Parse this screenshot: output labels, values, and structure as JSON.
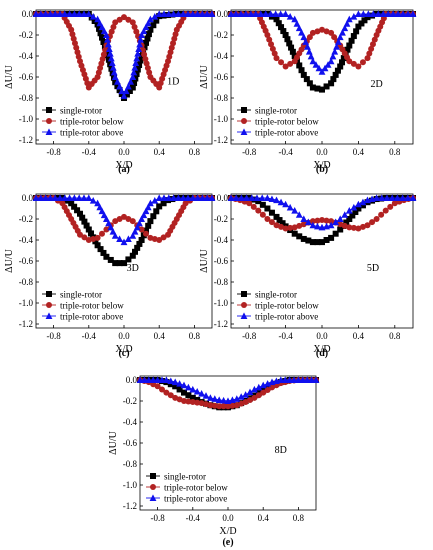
{
  "colors": {
    "single": "#000000",
    "below": "#b22222",
    "above": "#1010ee",
    "axis": "#000000"
  },
  "chart_data": [
    {
      "type": "line",
      "panel_label": "(a)",
      "annotation": "1D",
      "xlabel": "X/D",
      "ylabel": "ΔU/U",
      "xlim": [
        -1.0,
        1.0
      ],
      "ylim": [
        -1.2,
        0.0
      ],
      "xticks": [
        -0.8,
        -0.4,
        0.0,
        0.4,
        0.8
      ],
      "xtick_labels": [
        "-0.8",
        "-0.4",
        "0.0",
        "0.4",
        "0.8"
      ],
      "yticks": [
        0.0,
        -0.2,
        -0.4,
        -0.6,
        -0.8,
        -1.0,
        -1.2
      ],
      "ytick_labels": [
        "0.0",
        "-0.2",
        "-0.4",
        "-0.6",
        "-0.8",
        "-1.0",
        "-1.2"
      ],
      "legend": "bottom-left",
      "series": [
        {
          "name": "single-rotor",
          "marker": "square",
          "color": "#000000",
          "x": [
            -1.0,
            -0.8,
            -0.6,
            -0.4,
            -0.3,
            -0.2,
            -0.1,
            0.0,
            0.1,
            0.2,
            0.3,
            0.4,
            0.6,
            0.8,
            1.0
          ],
          "y": [
            0.0,
            0.0,
            0.0,
            0.0,
            -0.1,
            -0.35,
            -0.65,
            -0.8,
            -0.7,
            -0.4,
            -0.15,
            -0.02,
            0.0,
            0.0,
            0.0
          ]
        },
        {
          "name": "triple-rotor below",
          "marker": "circle",
          "color": "#b22222",
          "x": [
            -1.0,
            -0.7,
            -0.6,
            -0.5,
            -0.4,
            -0.3,
            -0.2,
            -0.1,
            0.0,
            0.1,
            0.2,
            0.3,
            0.4,
            0.5,
            0.6,
            0.7,
            1.0
          ],
          "y": [
            0.0,
            0.0,
            -0.15,
            -0.45,
            -0.7,
            -0.6,
            -0.3,
            -0.08,
            -0.03,
            -0.08,
            -0.3,
            -0.6,
            -0.7,
            -0.45,
            -0.15,
            0.0,
            0.0
          ]
        },
        {
          "name": "triple-rotor  above",
          "marker": "triangle",
          "color": "#1010ee",
          "x": [
            -1.0,
            -0.4,
            -0.3,
            -0.2,
            -0.1,
            0.0,
            0.1,
            0.2,
            0.3,
            0.4,
            1.0
          ],
          "y": [
            0.0,
            0.0,
            -0.05,
            -0.2,
            -0.6,
            -0.78,
            -0.6,
            -0.2,
            -0.05,
            0.0,
            0.0
          ]
        }
      ]
    },
    {
      "type": "line",
      "panel_label": "(b)",
      "annotation": "2D",
      "xlabel": "X/D",
      "ylabel": "ΔU/U",
      "xlim": [
        -1.0,
        1.0
      ],
      "ylim": [
        -1.2,
        0.0
      ],
      "xticks": [
        -0.8,
        -0.4,
        0.0,
        0.4,
        0.8
      ],
      "xtick_labels": [
        "-0.8",
        "-0.4",
        "0.0",
        "0.4",
        "0.8"
      ],
      "yticks": [
        0.0,
        -0.2,
        -0.4,
        -0.6,
        -0.8,
        -1.0,
        -1.2
      ],
      "ytick_labels": [
        "0.0",
        "-0.2",
        "-0.4",
        "-0.6",
        "-0.8",
        "-1.0",
        "-1.2"
      ],
      "legend": "bottom-left",
      "series": [
        {
          "name": "single-rotor",
          "marker": "square",
          "color": "#000000",
          "x": [
            -1.0,
            -0.6,
            -0.5,
            -0.4,
            -0.3,
            -0.2,
            -0.1,
            0.0,
            0.1,
            0.2,
            0.3,
            0.4,
            0.5,
            0.6,
            1.0
          ],
          "y": [
            0.0,
            0.0,
            -0.05,
            -0.2,
            -0.4,
            -0.58,
            -0.7,
            -0.72,
            -0.66,
            -0.5,
            -0.3,
            -0.12,
            -0.03,
            0.0,
            0.0
          ]
        },
        {
          "name": "triple-rotor below",
          "marker": "circle",
          "color": "#b22222",
          "x": [
            -1.0,
            -0.7,
            -0.6,
            -0.5,
            -0.4,
            -0.3,
            -0.2,
            -0.1,
            0.0,
            0.1,
            0.2,
            0.3,
            0.4,
            0.5,
            0.6,
            0.7,
            1.0
          ],
          "y": [
            0.0,
            0.0,
            -0.2,
            -0.42,
            -0.5,
            -0.45,
            -0.3,
            -0.18,
            -0.15,
            -0.18,
            -0.3,
            -0.45,
            -0.5,
            -0.42,
            -0.2,
            0.0,
            0.0
          ]
        },
        {
          "name": "triple-rotor  above",
          "marker": "triangle",
          "color": "#1010ee",
          "x": [
            -1.0,
            -0.4,
            -0.3,
            -0.2,
            -0.1,
            0.0,
            0.1,
            0.2,
            0.3,
            0.4,
            1.0
          ],
          "y": [
            0.0,
            0.0,
            -0.05,
            -0.22,
            -0.45,
            -0.55,
            -0.45,
            -0.22,
            -0.05,
            0.0,
            0.0
          ]
        }
      ]
    },
    {
      "type": "line",
      "panel_label": "(c)",
      "annotation": "3D",
      "xlabel": "X/D",
      "ylabel": "ΔU/U",
      "xlim": [
        -1.0,
        1.0
      ],
      "ylim": [
        -1.2,
        0.0
      ],
      "xticks": [
        -0.8,
        -0.4,
        0.0,
        0.4,
        0.8
      ],
      "xtick_labels": [
        "-0.8",
        "-0.4",
        "0.0",
        "0.4",
        "0.8"
      ],
      "yticks": [
        0.0,
        -0.2,
        -0.4,
        -0.6,
        -0.8,
        -1.0,
        -1.2
      ],
      "ytick_labels": [
        "0.0",
        "-0.2",
        "-0.4",
        "-0.6",
        "-0.8",
        "-1.0",
        "-1.2"
      ],
      "legend": "bottom-left",
      "series": [
        {
          "name": "single-rotor",
          "marker": "square",
          "color": "#000000",
          "x": [
            -1.0,
            -0.7,
            -0.6,
            -0.5,
            -0.4,
            -0.3,
            -0.2,
            -0.1,
            0.0,
            0.1,
            0.2,
            0.3,
            0.4,
            0.5,
            0.6,
            1.0
          ],
          "y": [
            0.0,
            0.0,
            -0.05,
            -0.15,
            -0.3,
            -0.45,
            -0.56,
            -0.62,
            -0.62,
            -0.55,
            -0.4,
            -0.22,
            -0.08,
            -0.02,
            0.0,
            0.0
          ]
        },
        {
          "name": "triple-rotor below",
          "marker": "circle",
          "color": "#b22222",
          "x": [
            -1.0,
            -0.8,
            -0.7,
            -0.6,
            -0.5,
            -0.4,
            -0.3,
            -0.2,
            -0.1,
            0.0,
            0.1,
            0.2,
            0.3,
            0.4,
            0.5,
            0.6,
            0.7,
            0.8,
            1.0
          ],
          "y": [
            0.0,
            0.0,
            -0.05,
            -0.2,
            -0.35,
            -0.4,
            -0.38,
            -0.3,
            -0.22,
            -0.18,
            -0.22,
            -0.3,
            -0.38,
            -0.4,
            -0.35,
            -0.2,
            -0.05,
            0.0,
            0.0
          ]
        },
        {
          "name": "triple-rotor  above",
          "marker": "triangle",
          "color": "#1010ee",
          "x": [
            -1.0,
            -0.4,
            -0.3,
            -0.2,
            -0.1,
            0.0,
            0.1,
            0.2,
            0.3,
            0.4,
            1.0
          ],
          "y": [
            0.0,
            0.0,
            -0.05,
            -0.2,
            -0.36,
            -0.42,
            -0.36,
            -0.2,
            -0.05,
            0.0,
            0.0
          ]
        }
      ]
    },
    {
      "type": "line",
      "panel_label": "(d)",
      "annotation": "5D",
      "xlabel": "X/D",
      "ylabel": "ΔU/U",
      "xlim": [
        -1.0,
        1.0
      ],
      "ylim": [
        -1.2,
        0.0
      ],
      "xticks": [
        -0.8,
        -0.4,
        0.0,
        0.4,
        0.8
      ],
      "xtick_labels": [
        "-0.8",
        "-0.4",
        "0.0",
        "0.4",
        "0.8"
      ],
      "yticks": [
        0.0,
        -0.2,
        -0.4,
        -0.6,
        -0.8,
        -1.0,
        -1.2
      ],
      "ytick_labels": [
        "0.0",
        "-0.2",
        "-0.4",
        "-0.6",
        "-0.8",
        "-1.0",
        "-1.2"
      ],
      "legend": "bottom-left",
      "series": [
        {
          "name": "single-rotor",
          "marker": "square",
          "color": "#000000",
          "x": [
            -1.0,
            -0.8,
            -0.7,
            -0.6,
            -0.5,
            -0.4,
            -0.3,
            -0.2,
            -0.1,
            0.0,
            0.1,
            0.2,
            0.3,
            0.4,
            0.5,
            0.6,
            0.7,
            1.0
          ],
          "y": [
            0.0,
            0.0,
            -0.03,
            -0.1,
            -0.18,
            -0.27,
            -0.34,
            -0.39,
            -0.42,
            -0.42,
            -0.38,
            -0.3,
            -0.2,
            -0.1,
            -0.04,
            -0.01,
            0.0,
            0.0
          ]
        },
        {
          "name": "triple-rotor below",
          "marker": "circle",
          "color": "#b22222",
          "x": [
            -1.0,
            -0.9,
            -0.8,
            -0.7,
            -0.6,
            -0.5,
            -0.4,
            -0.3,
            -0.2,
            -0.1,
            0.0,
            0.1,
            0.2,
            0.3,
            0.4,
            0.5,
            0.6,
            0.7,
            0.8,
            0.9,
            1.0
          ],
          "y": [
            0.0,
            -0.02,
            -0.05,
            -0.12,
            -0.2,
            -0.26,
            -0.29,
            -0.28,
            -0.25,
            -0.22,
            -0.21,
            -0.22,
            -0.25,
            -0.28,
            -0.29,
            -0.26,
            -0.2,
            -0.12,
            -0.05,
            -0.02,
            0.0
          ]
        },
        {
          "name": "triple-rotor  above",
          "marker": "triangle",
          "color": "#1010ee",
          "x": [
            -1.0,
            -0.6,
            -0.5,
            -0.4,
            -0.3,
            -0.2,
            -0.1,
            0.0,
            0.1,
            0.2,
            0.3,
            0.4,
            0.5,
            0.6,
            1.0
          ],
          "y": [
            0.0,
            0.0,
            -0.02,
            -0.06,
            -0.12,
            -0.2,
            -0.26,
            -0.28,
            -0.26,
            -0.2,
            -0.12,
            -0.06,
            -0.02,
            0.0,
            0.0
          ]
        }
      ]
    },
    {
      "type": "line",
      "panel_label": "(e)",
      "annotation": "8D",
      "xlabel": "X/D",
      "ylabel": "ΔU/U",
      "xlim": [
        -1.0,
        1.0
      ],
      "ylim": [
        -1.2,
        0.0
      ],
      "xticks": [
        -0.8,
        -0.4,
        0.0,
        0.4,
        0.8
      ],
      "xtick_labels": [
        "-0.8",
        "-0.4",
        "0.0",
        "0.4",
        "0.8"
      ],
      "yticks": [
        0.0,
        -0.2,
        -0.4,
        -0.6,
        -0.8,
        -1.0,
        -1.2
      ],
      "ytick_labels": [
        "0.0",
        "-0.2",
        "-0.4",
        "-0.6",
        "-0.8",
        "-1.0",
        "-1.2"
      ],
      "legend": "bottom-left",
      "series": [
        {
          "name": "single-rotor",
          "marker": "square",
          "color": "#000000",
          "x": [
            -1.0,
            -0.8,
            -0.7,
            -0.6,
            -0.5,
            -0.4,
            -0.3,
            -0.2,
            -0.1,
            0.0,
            0.1,
            0.2,
            0.3,
            0.4,
            0.5,
            0.6,
            0.7,
            0.8,
            1.0
          ],
          "y": [
            0.0,
            0.0,
            -0.02,
            -0.06,
            -0.12,
            -0.17,
            -0.21,
            -0.24,
            -0.26,
            -0.26,
            -0.24,
            -0.2,
            -0.15,
            -0.1,
            -0.05,
            -0.02,
            0.0,
            0.0,
            0.0
          ]
        },
        {
          "name": "triple-rotor below",
          "marker": "circle",
          "color": "#b22222",
          "x": [
            -1.0,
            -0.9,
            -0.8,
            -0.7,
            -0.6,
            -0.5,
            -0.4,
            -0.3,
            -0.2,
            -0.1,
            0.0,
            0.1,
            0.2,
            0.3,
            0.4,
            0.5,
            0.6,
            0.7,
            0.8,
            1.0
          ],
          "y": [
            0.0,
            -0.02,
            -0.06,
            -0.12,
            -0.17,
            -0.2,
            -0.21,
            -0.22,
            -0.24,
            -0.25,
            -0.25,
            -0.24,
            -0.21,
            -0.17,
            -0.12,
            -0.07,
            -0.03,
            -0.01,
            0.0,
            0.0
          ]
        },
        {
          "name": "triple-rotor  above",
          "marker": "triangle",
          "color": "#1010ee",
          "x": [
            -1.0,
            -0.8,
            -0.7,
            -0.6,
            -0.5,
            -0.4,
            -0.3,
            -0.2,
            -0.1,
            0.0,
            0.1,
            0.2,
            0.3,
            0.4,
            0.5,
            0.6,
            0.7,
            0.8,
            1.0
          ],
          "y": [
            0.0,
            0.0,
            0.0,
            -0.02,
            -0.05,
            -0.09,
            -0.13,
            -0.17,
            -0.19,
            -0.2,
            -0.18,
            -0.14,
            -0.09,
            -0.05,
            -0.02,
            0.0,
            0.0,
            0.0,
            0.0
          ]
        }
      ]
    }
  ]
}
